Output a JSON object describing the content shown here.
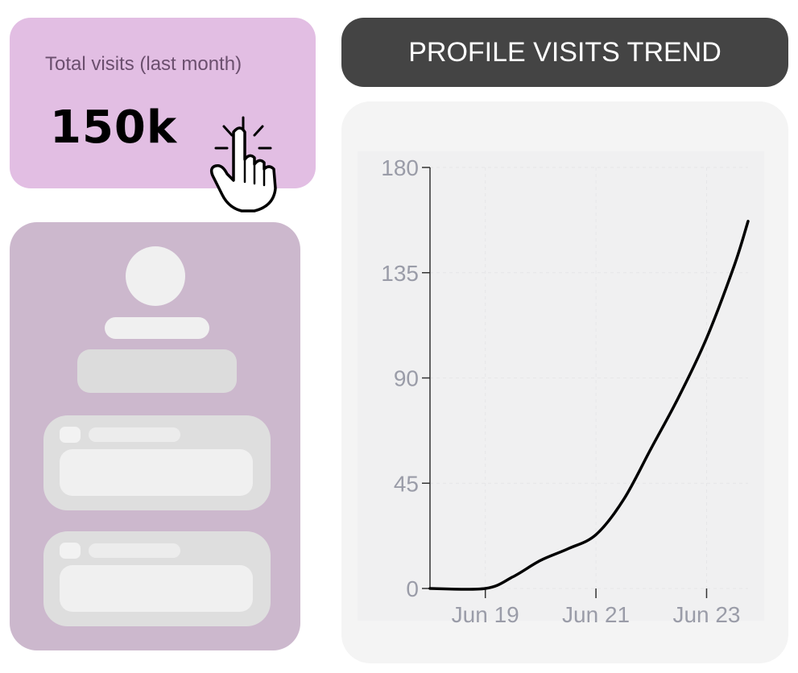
{
  "stat": {
    "label": "Total visits (last month)",
    "value": "150k"
  },
  "header": {
    "title": "PROFILE VISITS TREND"
  },
  "colors": {
    "stat_card_bg": "#e2bee3",
    "profile_card_bg": "#ccb8cd",
    "title_bg": "#444444",
    "chart_bg": "#f4f4f4",
    "line": "#000000",
    "tick_text": "#9a9ca8"
  },
  "icons": {
    "cursor": "pointer-hand-click-icon"
  },
  "chart_data": {
    "type": "line",
    "title": "",
    "xlabel": "",
    "ylabel": "",
    "x_ticks": [
      "Jun 19",
      "Jun 21",
      "Jun 23"
    ],
    "y_ticks": [
      0,
      45,
      90,
      135,
      180
    ],
    "ylim": [
      0,
      180
    ],
    "xlim": [
      "2024-06-18",
      "2024-06-23 18:00"
    ],
    "grid": true,
    "legend": "none",
    "series": [
      {
        "x": [
          "2024-06-18",
          "2024-06-19",
          "2024-06-19 12:00",
          "2024-06-20",
          "2024-06-20 12:00",
          "2024-06-21",
          "2024-06-21 12:00",
          "2024-06-22",
          "2024-06-22 12:00",
          "2024-06-23",
          "2024-06-23 12:00",
          "2024-06-23 18:00"
        ],
        "y": [
          0,
          0,
          5,
          12,
          17,
          23,
          38,
          60,
          82,
          107,
          138,
          157
        ]
      }
    ]
  }
}
